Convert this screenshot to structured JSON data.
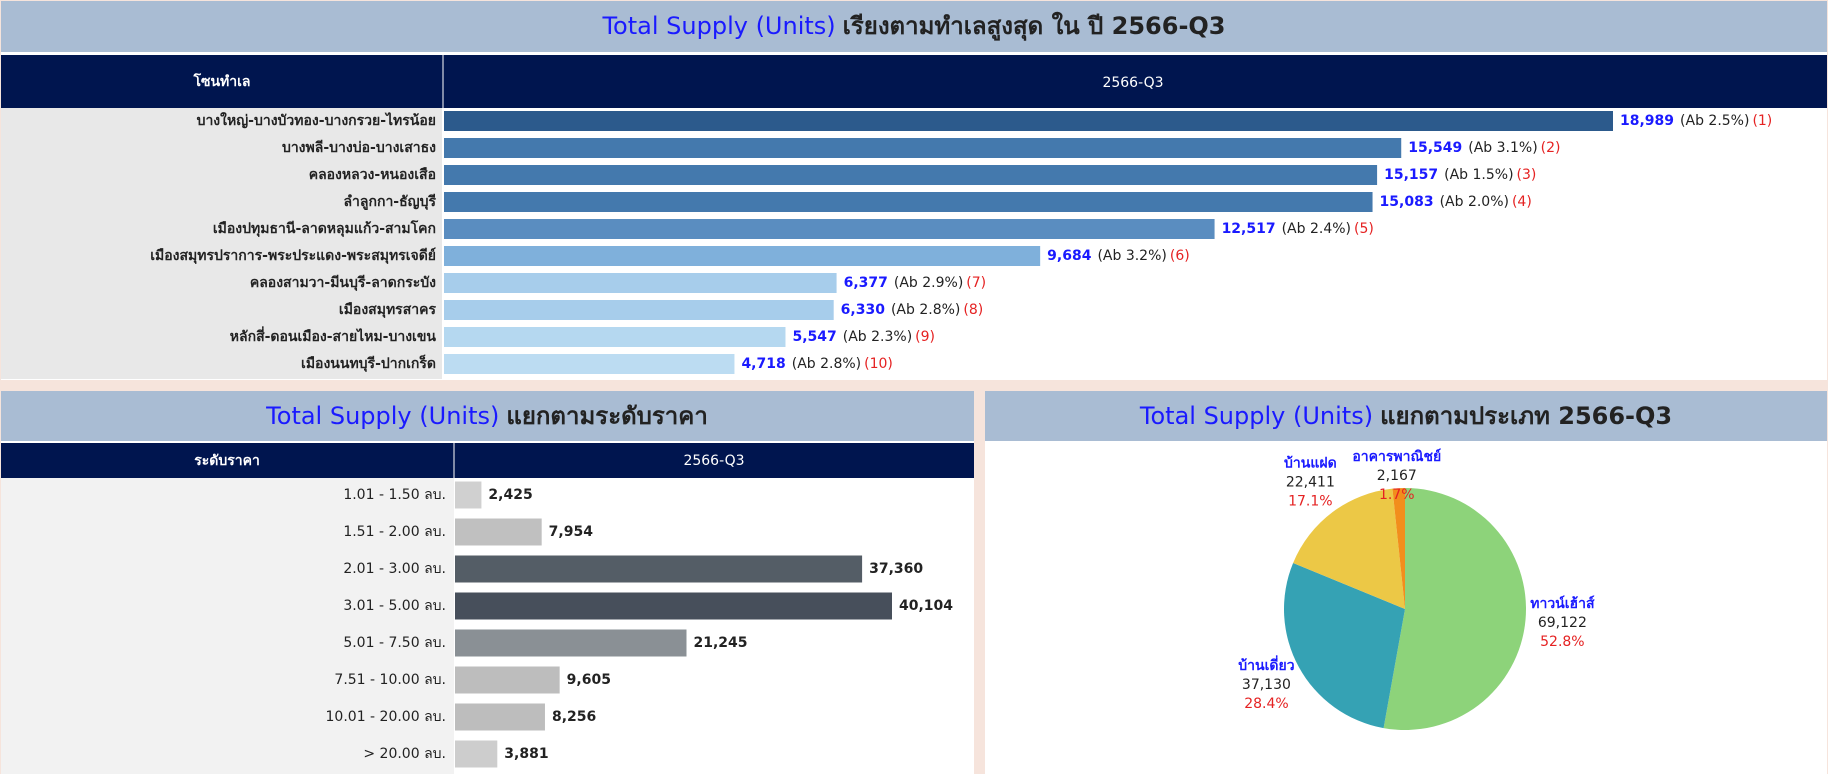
{
  "chart_data": [
    {
      "type": "hbar",
      "title_parts": [
        "Total Supply (Units)",
        "เรียงตามทำเลสูงสุด ใน ปี 2566-Q3"
      ],
      "headers": [
        "โซนทำเล",
        "2566-Q3"
      ],
      "categories": [
        "บางใหญ่-บางบัวทอง-บางกรวย-ไทรน้อย",
        "บางพลี-บางบ่อ-บางเสาธง",
        "คลองหลวง-หนองเสือ",
        "ลำลูกกา-ธัญบุรี",
        "เมืองปทุมธานี-ลาดหลุมแก้ว-สามโคก",
        "เมืองสมุทรปราการ-พระประแดง-พระสมุทรเจดีย์",
        "คลองสามวา-มีนบุรี-ลาดกระบัง",
        "เมืองสมุทรสาคร",
        "หลักสี่-ดอนเมือง-สายไหม-บางเขน",
        "เมืองนนทบุรี-ปากเกร็ด"
      ],
      "values": [
        18989,
        15549,
        15157,
        15083,
        12517,
        9684,
        6377,
        6330,
        5547,
        4718
      ],
      "value_labels": [
        "18,989",
        "15,549",
        "15,157",
        "15,083",
        "12,517",
        "9,684",
        "6,377",
        "6,330",
        "5,547",
        "4,718"
      ],
      "notes": [
        "(Ab 2.5%)",
        "(Ab 3.1%)",
        "(Ab 1.5%)",
        "(Ab 2.0%)",
        "(Ab 2.4%)",
        "(Ab 3.2%)",
        "(Ab 2.9%)",
        "(Ab 2.8%)",
        "(Ab 2.3%)",
        "(Ab 2.8%)"
      ],
      "ranks": [
        "(1)",
        "(2)",
        "(3)",
        "(4)",
        "(5)",
        "(6)",
        "(7)",
        "(8)",
        "(9)",
        "(10)"
      ],
      "colors": [
        "#2c5a8c",
        "#4479ad",
        "#4479ad",
        "#4479ad",
        "#5a8dc0",
        "#7fb0db",
        "#a7cdeb",
        "#a7cdeb",
        "#b5d8f0",
        "#bcdcf2"
      ]
    },
    {
      "type": "hbar",
      "title_parts": [
        "Total Supply (Units)",
        "แยกตามระดับราคา"
      ],
      "headers": [
        "ระดับราคา",
        "2566-Q3"
      ],
      "categories": [
        "1.01 - 1.50 ลบ.",
        "1.51 - 2.00 ลบ.",
        "2.01 - 3.00 ลบ.",
        "3.01 - 5.00 ลบ.",
        "5.01 - 7.50 ลบ.",
        "7.51 - 10.00 ลบ.",
        "10.01 - 20.00 ลบ.",
        "> 20.00 ลบ."
      ],
      "values": [
        2425,
        7954,
        37360,
        40104,
        21245,
        9605,
        8256,
        3881
      ],
      "value_labels": [
        "2,425",
        "7,954",
        "37,360",
        "40,104",
        "21,245",
        "9,605",
        "8,256",
        "3,881"
      ],
      "colors": [
        "#d0d0d0",
        "#c0c0c0",
        "#545d66",
        "#474f5b",
        "#8a9095",
        "#bdbdbd",
        "#bdbdbd",
        "#cdcdcd"
      ]
    },
    {
      "type": "pie",
      "title_parts": [
        "Total Supply (Units)",
        "แยกตามประเภท 2566-Q3"
      ],
      "categories": [
        "ทาวน์เฮ้าส์",
        "บ้านเดี่ยว",
        "บ้านแฝด",
        "อาคารพาณิชย์"
      ],
      "values": [
        69122,
        37130,
        22411,
        2167
      ],
      "value_labels": [
        "69,122",
        "37,130",
        "22,411",
        "2,167"
      ],
      "percents": [
        52.8,
        28.4,
        17.1,
        1.7
      ],
      "percent_labels": [
        "52.8%",
        "28.4%",
        "17.1%",
        "1.7%"
      ],
      "colors": [
        "#8dd37a",
        "#35a2b4",
        "#ecc846",
        "#f28e1c"
      ]
    }
  ]
}
